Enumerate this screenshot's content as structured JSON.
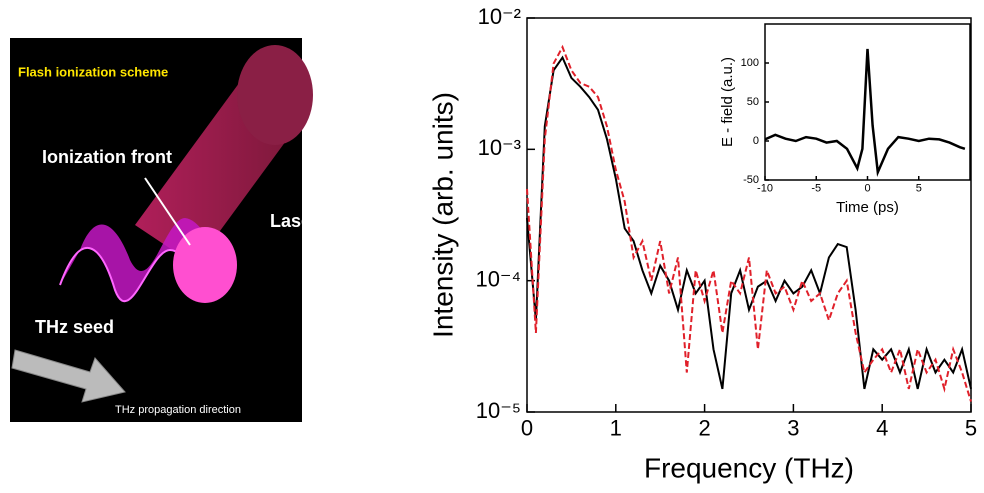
{
  "diagram": {
    "title": "Flash ionization scheme",
    "labels": [
      "Ionization front",
      "Laser pulse",
      "THz seed",
      "THz propagation direction"
    ]
  },
  "chart_data": [
    {
      "type": "line",
      "x_label": "Frequency (THz)",
      "y_label": "Intensity (arb. units)",
      "x": [
        0.0,
        0.1,
        0.2,
        0.3,
        0.4,
        0.5,
        0.6,
        0.7,
        0.8,
        0.9,
        1.0,
        1.1,
        1.2,
        1.3,
        1.4,
        1.5,
        1.6,
        1.7,
        1.8,
        1.9,
        2.0,
        2.1,
        2.2,
        2.3,
        2.4,
        2.5,
        2.6,
        2.7,
        2.8,
        2.9,
        3.0,
        3.1,
        3.2,
        3.3,
        3.4,
        3.5,
        3.6,
        3.7,
        3.8,
        3.9,
        4.0,
        4.1,
        4.2,
        4.3,
        4.4,
        4.5,
        4.6,
        4.7,
        4.8,
        4.9,
        5.0
      ],
      "series": [
        {
          "color": "#000000",
          "dash": false,
          "values": [
            0.0003,
            5e-05,
            0.0015,
            0.004,
            0.005,
            0.0035,
            0.003,
            0.0025,
            0.002,
            0.0012,
            0.0006,
            0.00025,
            0.0002,
            0.00012,
            8e-05,
            0.00013,
            0.0001,
            6e-05,
            0.00012,
            8e-05,
            0.0001,
            3e-05,
            1.5e-05,
            8e-05,
            0.00012,
            6e-05,
            9e-05,
            0.0001,
            7e-05,
            0.0001,
            8e-05,
            9e-05,
            0.00012,
            8e-05,
            0.00015,
            0.00019,
            0.00018,
            6e-05,
            1.5e-05,
            3e-05,
            2.5e-05,
            3e-05,
            2e-05,
            3e-05,
            1.5e-05,
            3e-05,
            2e-05,
            2.5e-05,
            2e-05,
            3e-05,
            1.5e-05
          ]
        },
        {
          "color": "#e0202a",
          "dash": true,
          "values": [
            0.0005,
            4e-05,
            0.0012,
            0.0045,
            0.006,
            0.004,
            0.0032,
            0.003,
            0.0025,
            0.0015,
            0.0007,
            0.0004,
            0.00015,
            0.0002,
            0.0001,
            0.0002,
            8e-05,
            0.00015,
            2e-05,
            0.00012,
            7e-05,
            0.00012,
            4e-05,
            0.0001,
            8e-05,
            0.00015,
            3e-05,
            0.00012,
            8e-05,
            9e-05,
            6e-05,
            0.0001,
            7e-05,
            8e-05,
            5e-05,
            8e-05,
            0.0001,
            4e-05,
            2e-05,
            2.5e-05,
            3e-05,
            2e-05,
            3e-05,
            1.5e-05,
            3e-05,
            2e-05,
            2.5e-05,
            1.5e-05,
            3e-05,
            2e-05,
            1.2e-05
          ]
        }
      ],
      "xlim": [
        0,
        5
      ],
      "xticks": [
        0,
        1,
        2,
        3,
        4,
        5
      ],
      "ylim": [
        1e-05,
        0.01
      ],
      "log_y": true,
      "yticks": [
        {
          "value": 1e-05,
          "label": "10⁻⁵"
        },
        {
          "value": 0.0001,
          "label": "10⁻⁴"
        },
        {
          "value": 0.001,
          "label": "10⁻³"
        },
        {
          "value": 0.01,
          "label": "10⁻²"
        }
      ]
    },
    {
      "type": "line",
      "x_label": "Time (ps)",
      "y_label": "E - field (a.u.)",
      "x": [
        -10,
        -9,
        -8,
        -7,
        -6,
        -5,
        -4,
        -3,
        -2,
        -1,
        -0.5,
        0,
        0.5,
        1,
        2,
        3,
        4,
        5,
        6,
        7,
        8,
        9,
        9.5
      ],
      "series": [
        {
          "color": "#000000",
          "dash": false,
          "values": [
            2,
            8,
            3,
            0,
            5,
            3,
            -2,
            0,
            -10,
            -35,
            -10,
            118,
            20,
            -40,
            -10,
            5,
            3,
            0,
            3,
            2,
            -2,
            -8,
            -10
          ]
        }
      ],
      "xlim": [
        -10,
        10
      ],
      "xticks": [
        -10,
        -5,
        0,
        5
      ],
      "ylim": [
        -50,
        150
      ],
      "log_y": false,
      "yticks": [
        -50,
        0,
        50,
        100
      ]
    }
  ]
}
